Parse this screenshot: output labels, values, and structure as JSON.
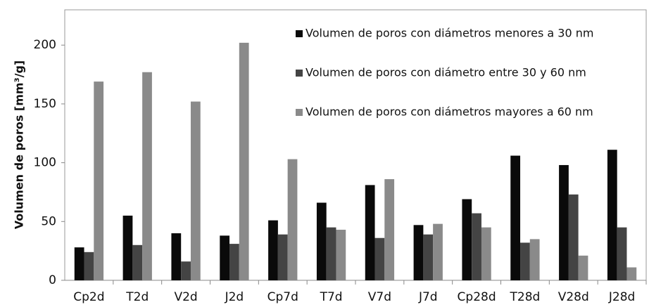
{
  "chart_data": {
    "type": "bar",
    "y_label": "Volumen de poros [mm³/g]",
    "categories": [
      "Cp2d",
      "T2d",
      "V2d",
      "J2d",
      "Cp7d",
      "T7d",
      "V7d",
      "J7d",
      "Cp28d",
      "T28d",
      "V28d",
      "J28d"
    ],
    "series": [
      {
        "name": "Volumen de poros con diámetros menores a 30 nm",
        "color": "#0a0a0a",
        "values": [
          28,
          55,
          40,
          38,
          51,
          66,
          81,
          47,
          69,
          106,
          98,
          111
        ]
      },
      {
        "name": "Volumen de poros con diámetro entre 30 y 60 nm",
        "color": "#444444",
        "values": [
          24,
          30,
          16,
          31,
          39,
          45,
          36,
          39,
          57,
          32,
          73,
          45
        ]
      },
      {
        "name": "Volumen de poros con diámetros mayores a 60 nm",
        "color": "#8a8a8a",
        "values": [
          169,
          177,
          152,
          202,
          103,
          43,
          86,
          48,
          45,
          35,
          21,
          11
        ]
      }
    ],
    "ylim": [
      0,
      230
    ],
    "yticks": [
      0,
      50,
      100,
      150,
      200
    ],
    "legend": "upper-right"
  }
}
